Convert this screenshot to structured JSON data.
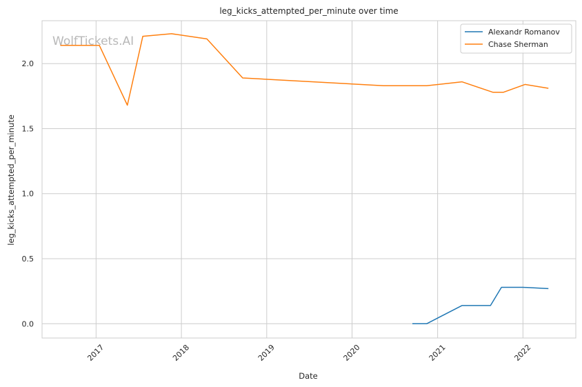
{
  "chart_data": {
    "type": "line",
    "title": "leg_kicks_attempted_per_minute over time",
    "xlabel": "Date",
    "ylabel": "leg_kicks_attempted_per_minute",
    "watermark": "WolfTickets.AI",
    "xlim": [
      "2016-05-15",
      "2022-08-15"
    ],
    "ylim": [
      -0.11,
      2.33
    ],
    "x_ticks": [
      "2017-01-01",
      "2018-01-01",
      "2019-01-01",
      "2020-01-01",
      "2021-01-01",
      "2022-01-01"
    ],
    "x_tick_labels": [
      "2017",
      "2018",
      "2019",
      "2020",
      "2021",
      "2022"
    ],
    "y_ticks": [
      0.0,
      0.5,
      1.0,
      1.5,
      2.0
    ],
    "y_tick_labels": [
      "0.0",
      "0.5",
      "1.0",
      "1.5",
      "2.0"
    ],
    "grid": true,
    "legend_position": "top-right",
    "series": [
      {
        "name": "Alexandr Romanov",
        "color": "#1f77b4",
        "points": [
          {
            "x": "2020-09-15",
            "y": 0.0
          },
          {
            "x": "2020-11-15",
            "y": 0.0
          },
          {
            "x": "2021-04-15",
            "y": 0.14
          },
          {
            "x": "2021-08-15",
            "y": 0.14
          },
          {
            "x": "2021-10-01",
            "y": 0.28
          },
          {
            "x": "2022-01-01",
            "y": 0.28
          },
          {
            "x": "2022-04-20",
            "y": 0.27
          }
        ]
      },
      {
        "name": "Chase Sherman",
        "color": "#ff7f0e",
        "points": [
          {
            "x": "2016-08-01",
            "y": 2.14
          },
          {
            "x": "2017-01-15",
            "y": 2.14
          },
          {
            "x": "2017-05-15",
            "y": 1.68
          },
          {
            "x": "2017-07-20",
            "y": 2.21
          },
          {
            "x": "2017-11-20",
            "y": 2.23
          },
          {
            "x": "2018-04-20",
            "y": 2.19
          },
          {
            "x": "2018-09-20",
            "y": 1.89
          },
          {
            "x": "2020-05-15",
            "y": 1.83
          },
          {
            "x": "2020-11-15",
            "y": 1.83
          },
          {
            "x": "2021-04-15",
            "y": 1.86
          },
          {
            "x": "2021-08-25",
            "y": 1.78
          },
          {
            "x": "2021-10-10",
            "y": 1.78
          },
          {
            "x": "2022-01-10",
            "y": 1.84
          },
          {
            "x": "2022-04-20",
            "y": 1.81
          }
        ]
      }
    ]
  }
}
